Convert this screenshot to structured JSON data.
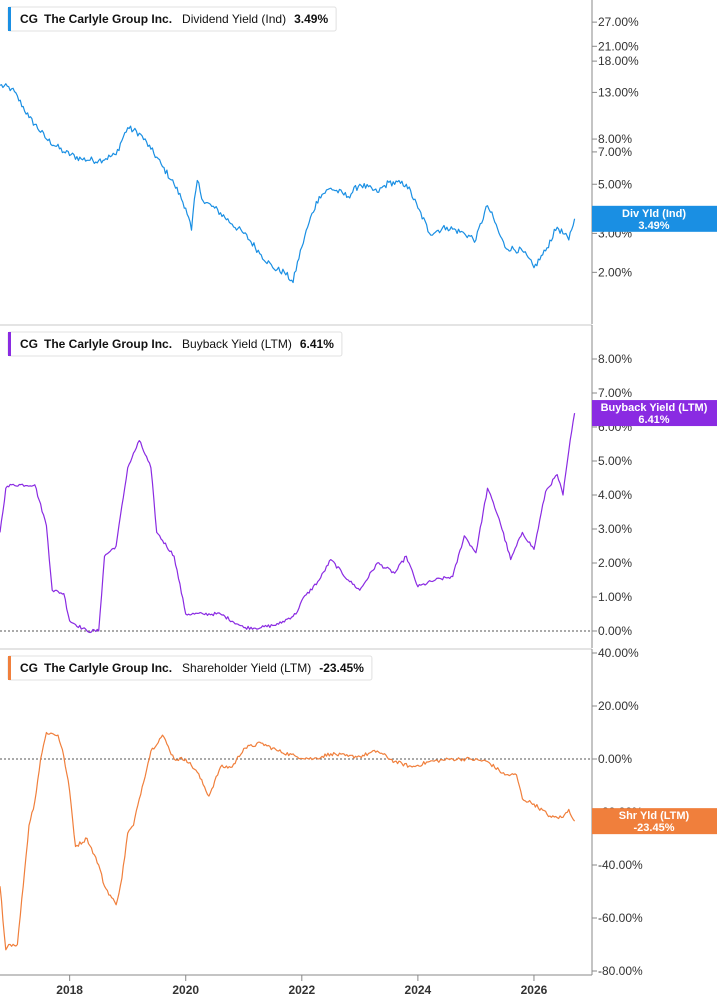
{
  "chart_data": [
    {
      "type": "line",
      "ticker": "CG",
      "company": "The Carlyle Group Inc.",
      "metric": "Dividend Yield (Ind)",
      "current": "3.49%",
      "tag_label": "Div Yld (Ind)",
      "tag_value": "3.49%",
      "color": "#1a8fe3",
      "scale": "log",
      "ylim": [
        1.5,
        30
      ],
      "yticks": [
        {
          "v": 27,
          "label": "27.00%"
        },
        {
          "v": 21,
          "label": "21.00%"
        },
        {
          "v": 18,
          "label": "18.00%"
        },
        {
          "v": 13,
          "label": "13.00%"
        },
        {
          "v": 8,
          "label": "8.00%"
        },
        {
          "v": 7,
          "label": "7.00%"
        },
        {
          "v": 5,
          "label": "5.00%"
        },
        {
          "v": 3,
          "label": "3.00%"
        },
        {
          "v": 2,
          "label": "2.00%"
        }
      ],
      "zero_line": false,
      "x": [
        2016.8,
        2017.0,
        2017.3,
        2017.6,
        2017.9,
        2018.2,
        2018.5,
        2018.8,
        2019.0,
        2019.2,
        2019.4,
        2019.6,
        2019.8,
        2020.0,
        2020.1,
        2020.2,
        2020.3,
        2020.5,
        2020.8,
        2021.0,
        2021.3,
        2021.5,
        2021.7,
        2021.85,
        2022.0,
        2022.1,
        2022.3,
        2022.5,
        2022.8,
        2023.0,
        2023.3,
        2023.5,
        2023.8,
        2024.0,
        2024.2,
        2024.5,
        2024.8,
        2025.0,
        2025.2,
        2025.4,
        2025.5,
        2025.8,
        2026.0,
        2026.2,
        2026.4,
        2026.6,
        2026.7
      ],
      "y": [
        14.0,
        13.5,
        10.0,
        8.0,
        7.0,
        6.5,
        6.4,
        6.8,
        9.0,
        8.5,
        7.2,
        6.0,
        5.0,
        3.9,
        3.1,
        5.2,
        4.2,
        3.9,
        3.3,
        3.0,
        2.4,
        2.1,
        2.0,
        1.8,
        2.6,
        3.2,
        4.4,
        4.8,
        4.4,
        5.0,
        4.6,
        5.1,
        5.0,
        3.9,
        3.0,
        3.2,
        3.0,
        2.8,
        4.0,
        3.0,
        2.6,
        2.5,
        2.1,
        2.5,
        3.2,
        2.8,
        3.49
      ]
    },
    {
      "type": "line",
      "ticker": "CG",
      "company": "The Carlyle Group Inc.",
      "metric": "Buyback Yield (LTM)",
      "current": "6.41%",
      "tag_label": "Buyback Yield (LTM)",
      "tag_value": "6.41%",
      "color": "#8a2be2",
      "scale": "linear",
      "ylim": [
        0,
        8.5
      ],
      "yticks": [
        {
          "v": 8,
          "label": "8.00%"
        },
        {
          "v": 7,
          "label": "7.00%"
        },
        {
          "v": 6,
          "label": "6.00%"
        },
        {
          "v": 5,
          "label": "5.00%"
        },
        {
          "v": 4,
          "label": "4.00%"
        },
        {
          "v": 3,
          "label": "3.00%"
        },
        {
          "v": 2,
          "label": "2.00%"
        },
        {
          "v": 1,
          "label": "1.00%"
        },
        {
          "v": 0,
          "label": "0.00%"
        }
      ],
      "zero_line": true,
      "x": [
        2016.8,
        2016.9,
        2017.0,
        2017.4,
        2017.6,
        2017.7,
        2017.9,
        2018.0,
        2018.3,
        2018.5,
        2018.6,
        2018.8,
        2019.0,
        2019.2,
        2019.4,
        2019.5,
        2019.8,
        2020.0,
        2020.3,
        2020.6,
        2020.9,
        2021.0,
        2021.3,
        2021.6,
        2021.9,
        2022.0,
        2022.3,
        2022.5,
        2022.8,
        2023.0,
        2023.3,
        2023.6,
        2023.8,
        2024.0,
        2024.3,
        2024.6,
        2024.8,
        2025.0,
        2025.2,
        2025.4,
        2025.6,
        2025.8,
        2026.0,
        2026.2,
        2026.4,
        2026.5,
        2026.6,
        2026.7
      ],
      "y": [
        2.9,
        4.2,
        4.3,
        4.3,
        3.1,
        1.2,
        1.1,
        0.3,
        0.0,
        0.0,
        2.2,
        2.5,
        4.8,
        5.6,
        4.8,
        2.9,
        2.2,
        0.5,
        0.5,
        0.5,
        0.2,
        0.1,
        0.1,
        0.2,
        0.5,
        0.9,
        1.5,
        2.1,
        1.5,
        1.2,
        2.0,
        1.7,
        2.2,
        1.3,
        1.5,
        1.6,
        2.8,
        2.3,
        4.2,
        3.3,
        2.1,
        2.9,
        2.4,
        4.1,
        4.6,
        4.0,
        5.3,
        6.41
      ]
    },
    {
      "type": "line",
      "ticker": "CG",
      "company": "The Carlyle Group Inc.",
      "metric": "Shareholder Yield (LTM)",
      "current": "-23.45%",
      "tag_label": "Shr Yld (LTM)",
      "tag_value": "-23.45%",
      "color": "#f07f3c",
      "scale": "linear",
      "ylim": [
        -80,
        40
      ],
      "yticks": [
        {
          "v": 40,
          "label": "40.00%"
        },
        {
          "v": 20,
          "label": "20.00%"
        },
        {
          "v": 0,
          "label": "0.00%"
        },
        {
          "v": -20,
          "label": "-20.00%"
        },
        {
          "v": -40,
          "label": "-40.00%"
        },
        {
          "v": -60,
          "label": "-60.00%"
        },
        {
          "v": -80,
          "label": "-80.00%"
        }
      ],
      "zero_line": true,
      "x": [
        2016.8,
        2016.9,
        2016.95,
        2017.1,
        2017.3,
        2017.4,
        2017.5,
        2017.6,
        2017.8,
        2017.9,
        2018.0,
        2018.1,
        2018.3,
        2018.5,
        2018.6,
        2018.8,
        2018.9,
        2019.0,
        2019.1,
        2019.2,
        2019.4,
        2019.6,
        2019.8,
        2020.0,
        2020.2,
        2020.4,
        2020.6,
        2020.8,
        2021.0,
        2021.3,
        2021.6,
        2021.9,
        2022.2,
        2022.5,
        2022.8,
        2023.0,
        2023.3,
        2023.6,
        2023.9,
        2024.2,
        2024.6,
        2024.9,
        2025.2,
        2025.5,
        2025.7,
        2025.8,
        2026.0,
        2026.3,
        2026.5,
        2026.6,
        2026.7
      ],
      "y": [
        -48,
        -72,
        -70,
        -70,
        -25,
        -16,
        0,
        10,
        9,
        1,
        -12,
        -33,
        -30,
        -40,
        -48,
        -55,
        -45,
        -28,
        -25,
        -15,
        3,
        9,
        0,
        0,
        -5,
        -14,
        -3,
        -3,
        4,
        6,
        3,
        1,
        0,
        2,
        1,
        1,
        3,
        -1,
        -3,
        -1,
        0,
        0,
        -1,
        -6,
        -6,
        -15,
        -17,
        -22,
        -22,
        -19,
        -23.45
      ]
    }
  ],
  "x_axis": {
    "ticks": [
      {
        "v": 2018,
        "label": "2018"
      },
      {
        "v": 2020,
        "label": "2020"
      },
      {
        "v": 2022,
        "label": "2022"
      },
      {
        "v": 2024,
        "label": "2024"
      },
      {
        "v": 2026,
        "label": "2026"
      }
    ],
    "xlim": [
      2016.8,
      2027.0
    ]
  }
}
